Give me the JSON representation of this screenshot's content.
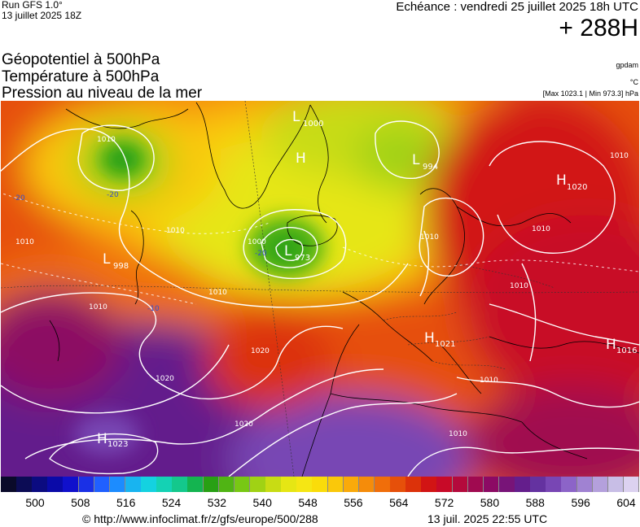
{
  "header": {
    "run_title": "Run GFS 1.0°",
    "run_date": "13 juillet 2025 18Z",
    "echeance": "Echéance : vendredi 25 juillet 2025 18h UTC",
    "lead_time": "+ 288H"
  },
  "parameters": [
    {
      "label": "Géopotentiel à 500hPa",
      "unit": "gpdam"
    },
    {
      "label": "Température à 500hPa",
      "unit": "°C"
    },
    {
      "label": "Pression au niveau de la mer",
      "unit": "[Max 1023.1 | Min 973.3] hPa"
    }
  ],
  "pressure_systems": [
    {
      "type": "L",
      "value": "1000"
    },
    {
      "type": "H",
      "value": ""
    },
    {
      "type": "L",
      "value": "994"
    },
    {
      "type": "H",
      "value": "1020"
    },
    {
      "type": "L",
      "value": "973"
    },
    {
      "type": "L",
      "value": "998"
    },
    {
      "type": "H",
      "value": "1021"
    },
    {
      "type": "H",
      "value": "1016"
    },
    {
      "type": "H",
      "value": "1023"
    }
  ],
  "isobar_labels": [
    "1010",
    "1010",
    "1010",
    "1010",
    "1010",
    "1010",
    "1010",
    "1010",
    "1010",
    "1020",
    "1020",
    "1020",
    "1010",
    "1000",
    "1010"
  ],
  "temperature_labels": [
    "-20",
    "-20",
    "-20",
    "-10"
  ],
  "color_scale": {
    "colors": [
      "#0a0a2a",
      "#0c0c55",
      "#0b0b80",
      "#0a0aa8",
      "#1010cc",
      "#1a30e6",
      "#2060ff",
      "#1c8cff",
      "#18b4f0",
      "#14d2e0",
      "#14d2b4",
      "#14c88c",
      "#14b450",
      "#28a014",
      "#50b414",
      "#78c814",
      "#a0d214",
      "#c8dc14",
      "#e6e614",
      "#f5e614",
      "#fadc0a",
      "#fac80a",
      "#faaa0a",
      "#f58c0a",
      "#f06e0a",
      "#e6500a",
      "#dc320a",
      "#d21414",
      "#c80a28",
      "#b40a3c",
      "#a00a50",
      "#8c0a64",
      "#781478",
      "#641e8c",
      "#6432a0",
      "#7846b4",
      "#8c64c8",
      "#a082d2",
      "#b4a0dc",
      "#c8bee6",
      "#dcd2f0"
    ],
    "ticks": [
      "500",
      "508",
      "516",
      "524",
      "532",
      "540",
      "548",
      "556",
      "564",
      "572",
      "580",
      "588",
      "596",
      "604"
    ]
  },
  "footer": {
    "url": "© http://www.infoclimat.fr/z/gfs/europe/500/288",
    "generated": "13 juil. 2025 22:55 UTC"
  }
}
